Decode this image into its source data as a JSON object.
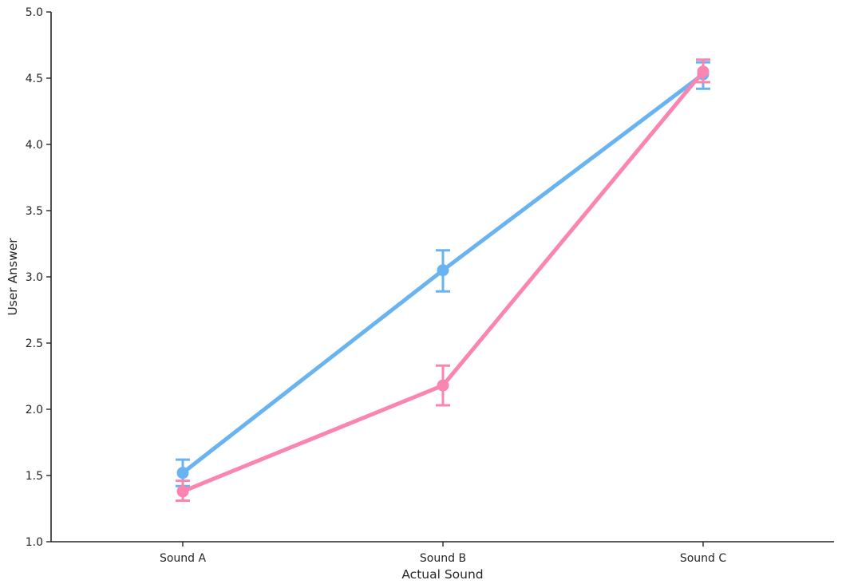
{
  "chart_data": {
    "type": "line",
    "title": "",
    "xlabel": "Actual Sound",
    "ylabel": "User Answer",
    "categories": [
      "Sound A",
      "Sound B",
      "Sound C"
    ],
    "ylim": [
      1.0,
      5.0
    ],
    "yticks": [
      "1.0",
      "1.5",
      "2.0",
      "2.5",
      "3.0",
      "3.5",
      "4.0",
      "4.5",
      "5.0"
    ],
    "grid": false,
    "legend": "none",
    "series": [
      {
        "color": "#69b3f1",
        "values": [
          1.52,
          3.05,
          4.53
        ],
        "error_low": [
          1.42,
          2.89,
          4.42
        ],
        "error_high": [
          1.62,
          3.2,
          4.62
        ]
      },
      {
        "color": "#f985b0",
        "values": [
          1.38,
          2.18,
          4.55
        ],
        "error_low": [
          1.31,
          2.03,
          4.47
        ],
        "error_high": [
          1.46,
          2.33,
          4.64
        ]
      }
    ]
  }
}
